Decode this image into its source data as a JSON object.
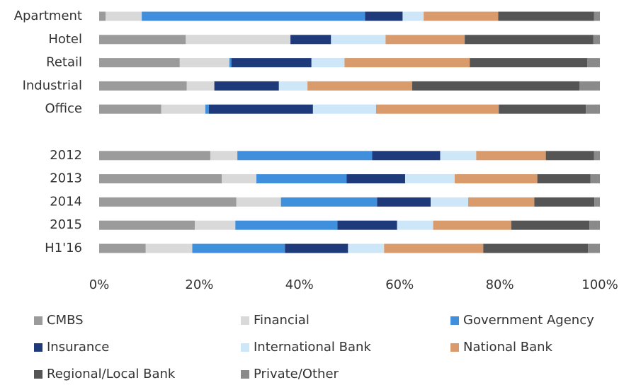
{
  "chart_data": {
    "type": "stacked-bar-horizontal",
    "categories": [
      "Apartment",
      "Hotel",
      "Retail",
      "Industrial",
      "Office",
      null,
      "2012",
      "2013",
      "2014",
      "2015",
      "H1'16"
    ],
    "series": [
      {
        "name": "CMBS",
        "color": "#9b9b9b",
        "values": [
          1.3,
          17.3,
          16.1,
          17.5,
          12.4,
          null,
          22.2,
          24.5,
          27.4,
          19.1,
          9.3
        ]
      },
      {
        "name": "Financial",
        "color": "#d9d9d9",
        "values": [
          7.2,
          20.9,
          9.9,
          5.5,
          8.8,
          null,
          5.4,
          6.9,
          8.9,
          8.1,
          9.3
        ]
      },
      {
        "name": "Government Agency",
        "color": "#3f8fdc",
        "values": [
          44.6,
          0,
          0.4,
          0,
          0.7,
          null,
          26.9,
          18.0,
          19.2,
          20.4,
          18.5
        ]
      },
      {
        "name": "Insurance",
        "color": "#1f3a7a",
        "values": [
          7.5,
          8.1,
          16.0,
          12.9,
          20.8,
          null,
          13.6,
          11.7,
          10.7,
          11.9,
          12.6
        ]
      },
      {
        "name": "International Bank",
        "color": "#cde6f8",
        "values": [
          4.2,
          10.9,
          6.6,
          5.7,
          12.6,
          null,
          7.2,
          9.9,
          7.5,
          7.2,
          7.2
        ]
      },
      {
        "name": "National Bank",
        "color": "#d99a6c",
        "values": [
          14.9,
          15.8,
          25.0,
          20.9,
          24.5,
          null,
          13.9,
          16.5,
          13.2,
          15.6,
          19.8
        ]
      },
      {
        "name": "Regional/Local Bank",
        "color": "#555555",
        "values": [
          19.1,
          25.7,
          23.5,
          33.4,
          17.4,
          null,
          9.6,
          10.6,
          12.0,
          15.6,
          20.9
        ]
      },
      {
        "name": "Private/Other",
        "color": "#8a8a8a",
        "values": [
          1.2,
          1.3,
          2.5,
          4.1,
          2.8,
          null,
          1.2,
          1.9,
          1.1,
          2.1,
          2.4
        ]
      }
    ],
    "xlim": [
      0,
      100
    ],
    "xticks": [
      {
        "value": 0,
        "label": "0%"
      },
      {
        "value": 20,
        "label": "20%"
      },
      {
        "value": 40,
        "label": "40%"
      },
      {
        "value": 60,
        "label": "60%"
      },
      {
        "value": 80,
        "label": "80%"
      },
      {
        "value": 100,
        "label": "100%"
      }
    ],
    "grid": false,
    "legend": "bottom"
  }
}
